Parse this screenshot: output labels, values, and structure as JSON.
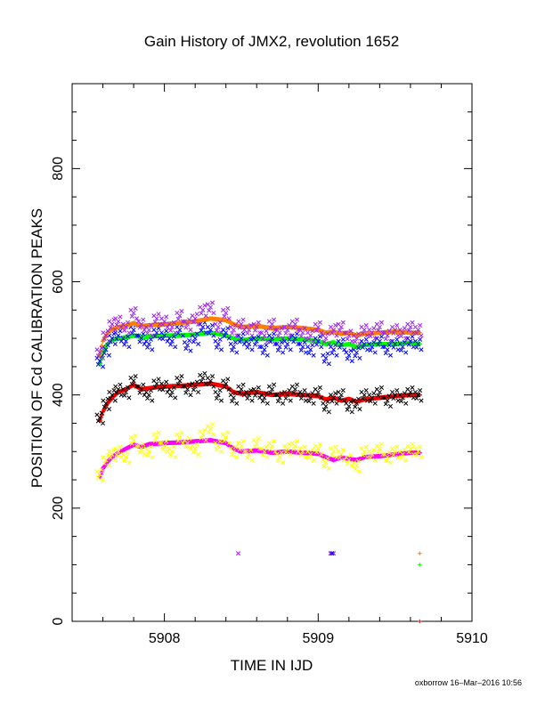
{
  "chart_data": {
    "type": "scatter",
    "title": "Gain History of JMX2, revolution 1652",
    "xlabel": "TIME IN IJD",
    "ylabel": "POSITION OF Cd CALIBRATION PEAKS",
    "xlim": [
      5907.4,
      5910.0
    ],
    "ylim": [
      0,
      950
    ],
    "x_ticks": [
      "5908",
      "5909",
      "5910"
    ],
    "x_tick_values": [
      5908,
      5909,
      5910
    ],
    "y_ticks": [
      "0",
      "200",
      "400",
      "600",
      "800"
    ],
    "y_tick_values": [
      0,
      200,
      400,
      600,
      800
    ],
    "grid": false,
    "legend": "none",
    "series": [
      {
        "color": "#ff00ff",
        "marker": "plus",
        "kind": "smooth",
        "x": [
          5907.58,
          5907.6,
          5907.63,
          5907.66,
          5907.7,
          5907.75,
          5907.8,
          5907.85,
          5907.9,
          5908.0,
          5908.1,
          5908.2,
          5908.3,
          5908.4,
          5908.45,
          5908.5,
          5908.6,
          5908.7,
          5908.8,
          5908.9,
          5909.0,
          5909.05,
          5909.1,
          5909.15,
          5909.2,
          5909.25,
          5909.3,
          5909.4,
          5909.5,
          5909.6,
          5909.66
        ],
        "y": [
          255,
          270,
          282,
          290,
          298,
          305,
          312,
          308,
          313,
          315,
          316,
          318,
          320,
          315,
          305,
          300,
          302,
          298,
          300,
          298,
          296,
          290,
          285,
          290,
          287,
          285,
          290,
          292,
          295,
          298,
          298
        ]
      },
      {
        "color": "#ffff00",
        "marker": "x",
        "kind": "scatter",
        "x": [
          5907.58,
          5907.62,
          5907.66,
          5907.7,
          5907.75,
          5907.8,
          5907.85,
          5907.9,
          5907.95,
          5908.0,
          5908.05,
          5908.1,
          5908.15,
          5908.2,
          5908.25,
          5908.3,
          5908.35,
          5908.4,
          5908.45,
          5908.5,
          5908.55,
          5908.6,
          5908.65,
          5908.7,
          5908.75,
          5908.8,
          5908.85,
          5908.9,
          5908.95,
          5909.0,
          5909.05,
          5909.1,
          5909.15,
          5909.2,
          5909.25,
          5909.3,
          5909.35,
          5909.4,
          5909.45,
          5909.5,
          5909.55,
          5909.6,
          5909.65
        ],
        "y": [
          260,
          285,
          295,
          300,
          290,
          320,
          305,
          300,
          325,
          310,
          300,
          325,
          315,
          305,
          330,
          340,
          310,
          325,
          300,
          310,
          295,
          315,
          300,
          310,
          290,
          305,
          310,
          300,
          295,
          305,
          280,
          300,
          295,
          285,
          275,
          300,
          295,
          305,
          290,
          300,
          295,
          305,
          300
        ]
      },
      {
        "color": "#ff0000",
        "marker": "plus",
        "kind": "smooth",
        "x": [
          5907.58,
          5907.6,
          5907.63,
          5907.66,
          5907.7,
          5907.75,
          5907.8,
          5907.85,
          5907.9,
          5908.0,
          5908.1,
          5908.2,
          5908.3,
          5908.4,
          5908.45,
          5908.5,
          5908.6,
          5908.7,
          5908.8,
          5908.9,
          5909.0,
          5909.05,
          5909.1,
          5909.15,
          5909.2,
          5909.25,
          5909.3,
          5909.4,
          5909.5,
          5909.6,
          5909.66
        ],
        "y": [
          355,
          370,
          385,
          395,
          405,
          410,
          418,
          410,
          412,
          415,
          416,
          418,
          420,
          415,
          405,
          402,
          405,
          400,
          402,
          400,
          398,
          392,
          395,
          390,
          393,
          388,
          392,
          395,
          398,
          400,
          400
        ]
      },
      {
        "color": "#000000",
        "marker": "x",
        "kind": "scatter",
        "x": [
          5907.58,
          5907.62,
          5907.66,
          5907.7,
          5907.75,
          5907.8,
          5907.85,
          5907.9,
          5907.95,
          5908.0,
          5908.05,
          5908.1,
          5908.15,
          5908.2,
          5908.25,
          5908.3,
          5908.35,
          5908.4,
          5908.45,
          5908.5,
          5908.55,
          5908.6,
          5908.65,
          5908.7,
          5908.75,
          5908.8,
          5908.85,
          5908.9,
          5908.95,
          5909.0,
          5909.05,
          5909.1,
          5909.15,
          5909.2,
          5909.25,
          5909.3,
          5909.35,
          5909.4,
          5909.45,
          5909.5,
          5909.55,
          5909.6,
          5909.65
        ],
        "y": [
          360,
          385,
          400,
          410,
          405,
          425,
          410,
          400,
          420,
          415,
          405,
          425,
          410,
          415,
          430,
          425,
          400,
          420,
          395,
          410,
          400,
          405,
          395,
          410,
          395,
          400,
          410,
          400,
          395,
          405,
          380,
          395,
          400,
          380,
          385,
          400,
          395,
          405,
          390,
          400,
          395,
          405,
          400
        ]
      },
      {
        "color": "#00ff00",
        "marker": "plus",
        "kind": "smooth",
        "x": [
          5907.58,
          5907.6,
          5907.63,
          5907.66,
          5907.7,
          5907.75,
          5907.8,
          5907.85,
          5907.9,
          5908.0,
          5908.1,
          5908.2,
          5908.3,
          5908.4,
          5908.45,
          5908.5,
          5908.6,
          5908.7,
          5908.8,
          5908.9,
          5909.0,
          5909.05,
          5909.1,
          5909.15,
          5909.2,
          5909.25,
          5909.3,
          5909.4,
          5909.5,
          5909.6,
          5909.66
        ],
        "y": [
          455,
          475,
          490,
          497,
          500,
          502,
          505,
          502,
          503,
          505,
          505,
          507,
          510,
          505,
          500,
          497,
          500,
          498,
          500,
          498,
          495,
          490,
          493,
          488,
          490,
          485,
          488,
          490,
          490,
          492,
          490
        ]
      },
      {
        "color": "#0000ff",
        "marker": "x",
        "kind": "scatter",
        "x": [
          5907.58,
          5907.62,
          5907.66,
          5907.7,
          5907.75,
          5907.8,
          5907.85,
          5907.9,
          5907.95,
          5908.0,
          5908.05,
          5908.1,
          5908.15,
          5908.2,
          5908.25,
          5908.3,
          5908.35,
          5908.4,
          5908.45,
          5908.5,
          5908.55,
          5908.6,
          5908.65,
          5908.7,
          5908.75,
          5908.8,
          5908.85,
          5908.9,
          5908.95,
          5909.0,
          5909.05,
          5909.1,
          5909.15,
          5909.2,
          5909.25,
          5909.3,
          5909.35,
          5909.4,
          5909.45,
          5909.5,
          5909.55,
          5909.6,
          5909.65
        ],
        "y": [
          460,
          480,
          500,
          505,
          495,
          515,
          500,
          490,
          510,
          505,
          495,
          515,
          488,
          500,
          520,
          515,
          490,
          510,
          485,
          500,
          490,
          495,
          480,
          500,
          485,
          490,
          500,
          485,
          480,
          495,
          465,
          480,
          490,
          470,
          475,
          490,
          485,
          495,
          480,
          490,
          485,
          495,
          490
        ]
      },
      {
        "color": "#ff8000",
        "marker": "plus",
        "kind": "smooth",
        "x": [
          5907.58,
          5907.6,
          5907.63,
          5907.66,
          5907.7,
          5907.75,
          5907.8,
          5907.85,
          5907.9,
          5908.0,
          5908.1,
          5908.2,
          5908.3,
          5908.4,
          5908.45,
          5908.5,
          5908.6,
          5908.7,
          5908.8,
          5908.9,
          5909.0,
          5909.05,
          5909.1,
          5909.15,
          5909.2,
          5909.25,
          5909.3,
          5909.4,
          5909.5,
          5909.6,
          5909.66
        ],
        "y": [
          470,
          495,
          510,
          516,
          520,
          522,
          527,
          522,
          523,
          525,
          527,
          530,
          535,
          532,
          525,
          520,
          522,
          518,
          520,
          518,
          515,
          510,
          512,
          508,
          510,
          505,
          508,
          510,
          512,
          510,
          510
        ]
      },
      {
        "color": "#a020f0",
        "marker": "x",
        "kind": "scatter",
        "x": [
          5907.58,
          5907.62,
          5907.66,
          5907.7,
          5907.75,
          5907.8,
          5907.85,
          5907.9,
          5907.95,
          5908.0,
          5908.05,
          5908.1,
          5908.15,
          5908.2,
          5908.25,
          5908.3,
          5908.35,
          5908.4,
          5908.45,
          5908.5,
          5908.55,
          5908.6,
          5908.65,
          5908.7,
          5908.75,
          5908.8,
          5908.85,
          5908.9,
          5908.95,
          5909.0,
          5909.05,
          5909.1,
          5909.15,
          5909.2,
          5909.25,
          5909.3,
          5909.35,
          5909.4,
          5909.45,
          5909.5,
          5909.55,
          5909.6,
          5909.65
        ],
        "y": [
          475,
          505,
          525,
          530,
          520,
          545,
          525,
          515,
          535,
          530,
          520,
          540,
          525,
          535,
          550,
          555,
          520,
          545,
          515,
          525,
          515,
          520,
          505,
          525,
          510,
          515,
          525,
          510,
          505,
          520,
          500,
          515,
          520,
          505,
          500,
          515,
          510,
          520,
          505,
          515,
          510,
          520,
          515
        ]
      },
      {
        "color": "#ff8000",
        "marker": "plus",
        "kind": "scatter",
        "x": [
          5909.66
        ],
        "y": [
          120
        ]
      },
      {
        "color": "#00ff00",
        "marker": "plus",
        "kind": "scatter",
        "x": [
          5909.66
        ],
        "y": [
          100
        ]
      },
      {
        "color": "#a020f0",
        "marker": "x",
        "kind": "scatter",
        "x": [
          5908.48,
          5909.08,
          5909.09,
          5909.1
        ],
        "y": [
          120,
          120,
          120,
          120
        ]
      },
      {
        "color": "#0000ff",
        "marker": "x",
        "kind": "scatter",
        "x": [
          5909.09
        ],
        "y": [
          120
        ]
      },
      {
        "color": "#ff0000",
        "marker": "plus",
        "kind": "scatter",
        "x": [
          5909.66
        ],
        "y": [
          0
        ]
      }
    ]
  },
  "footer": {
    "credit": "oxborrow 16–Mar–2016 10:56"
  }
}
